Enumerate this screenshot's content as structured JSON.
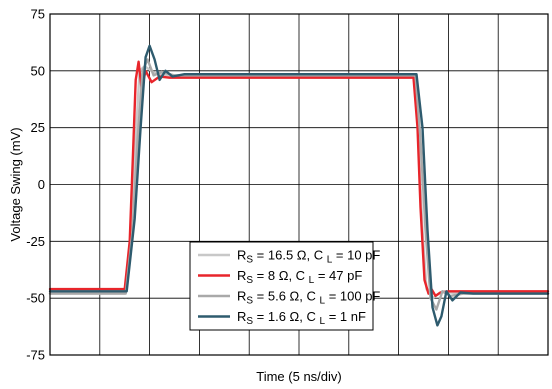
{
  "chart_data": {
    "type": "line",
    "title": "",
    "xlabel": "Time (5 ns/div)",
    "ylabel": "Voltage Swing (mV)",
    "xlim": [
      0,
      50
    ],
    "ylim": [
      -75,
      75
    ],
    "x_divisions": 10,
    "x_tick_labels": false,
    "y_ticks": [
      "75",
      "50",
      "25",
      "0",
      "-25",
      "-50",
      "-75"
    ],
    "grid": true,
    "legend_position": "bottom-center",
    "legend": [
      {
        "rs": "16.5 Ω",
        "cl": "10 pF",
        "color": "#c8c8c8"
      },
      {
        "rs": "8 Ω",
        "cl": "47 pF",
        "color": "#e8252b"
      },
      {
        "rs": "5.6 Ω",
        "cl": "100 pF",
        "color": "#a9a9a9"
      },
      {
        "rs": "1.6 Ω",
        "cl": "1 nF",
        "color": "#2e5b6e"
      }
    ],
    "series": [
      {
        "color": "#c8c8c8",
        "x": [
          0,
          7.5,
          8.2,
          8.6,
          9.0,
          9.5,
          10.5,
          12,
          35,
          36.6,
          37.0,
          37.4,
          37.8,
          38.4,
          39.4,
          41,
          50
        ],
        "y": [
          -48,
          -48,
          -20,
          20,
          50,
          52,
          49,
          48,
          48,
          48,
          20,
          -20,
          -46,
          -50,
          -47,
          -48,
          -48
        ]
      },
      {
        "color": "#e8252b",
        "x": [
          0,
          7.5,
          8.0,
          8.3,
          8.6,
          8.9,
          9.2,
          9.6,
          10.2,
          11,
          12,
          35,
          36.5,
          36.9,
          37.2,
          37.6,
          38.0,
          38.3,
          38.7,
          39.2,
          40,
          41,
          50
        ],
        "y": [
          -46,
          -46,
          -25,
          10,
          46,
          54,
          42,
          50,
          45,
          47.5,
          47,
          47,
          47,
          25,
          -10,
          -42,
          -48,
          -46,
          -49,
          -47.5,
          -47,
          -47,
          -47
        ]
      },
      {
        "color": "#a9a9a9",
        "x": [
          0,
          7.6,
          8.3,
          8.8,
          9.3,
          9.8,
          10.4,
          11.2,
          12.5,
          35,
          36.7,
          37.2,
          37.7,
          38.2,
          38.8,
          39.4,
          40.2,
          41.5,
          50
        ],
        "y": [
          -48,
          -48,
          -20,
          20,
          50,
          55,
          48,
          49.5,
          48,
          48,
          48,
          20,
          -20,
          -50,
          -55,
          -47,
          -49,
          -48,
          -48
        ]
      },
      {
        "color": "#2e5b6e",
        "x": [
          0,
          7.7,
          8.5,
          9.1,
          9.6,
          10.0,
          10.5,
          11.0,
          11.6,
          12.3,
          13.5,
          35,
          36.8,
          37.4,
          37.9,
          38.4,
          38.9,
          39.3,
          39.8,
          40.4,
          41.2,
          42.5,
          50
        ],
        "y": [
          -47,
          -47,
          -15,
          25,
          56,
          61,
          55,
          46,
          50,
          47.5,
          48.5,
          48.5,
          48.5,
          25,
          -20,
          -54,
          -62,
          -58,
          -47,
          -51,
          -47.5,
          -48,
          -48
        ]
      }
    ]
  }
}
